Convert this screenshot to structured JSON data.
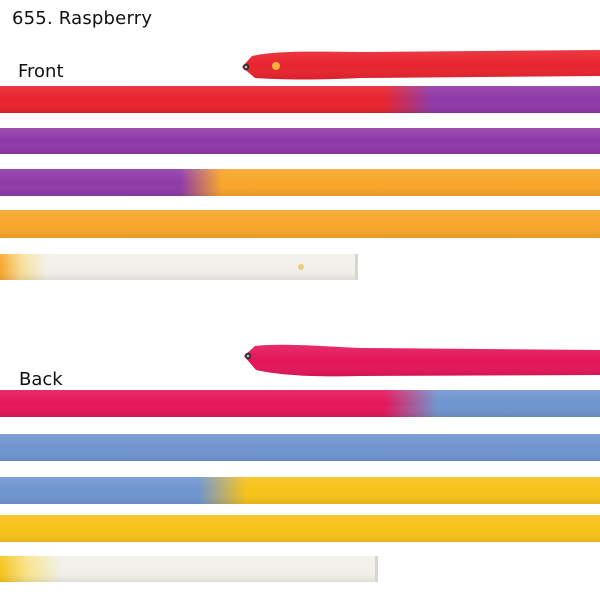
{
  "title": "655. Raspberry",
  "sections": {
    "front": {
      "label": "Front",
      "colors": [
        "#e8242e",
        "#8f3aa8",
        "#f7a62a",
        "#f2f0ea"
      ]
    },
    "back": {
      "label": "Back",
      "colors": [
        "#e4165a",
        "#6f95cf",
        "#f7c21a",
        "#f2f0ea"
      ]
    }
  }
}
